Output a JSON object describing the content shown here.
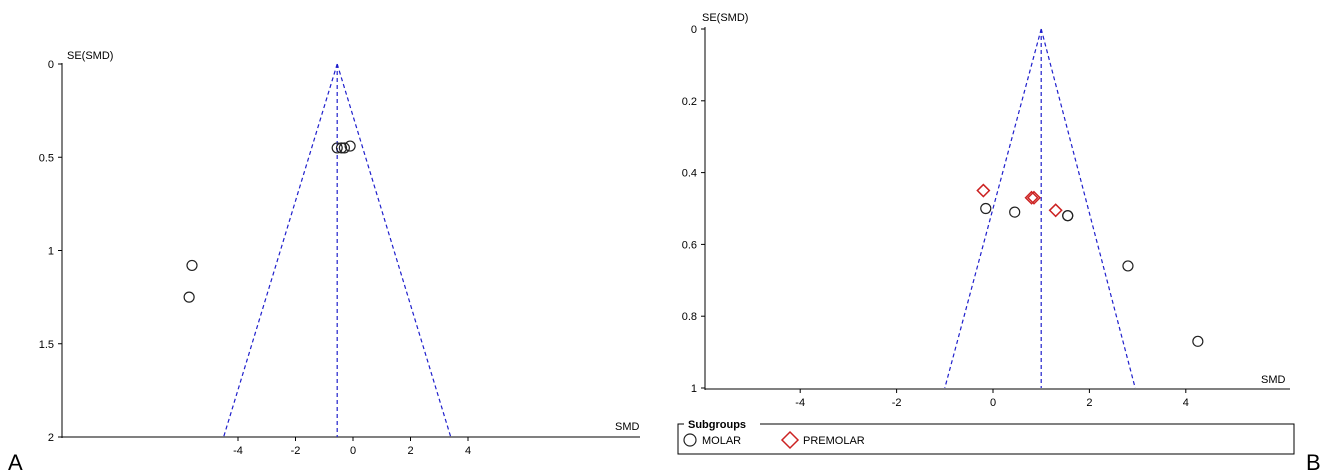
{
  "panels": [
    {
      "panel_label": "A",
      "y_axis_label": "SE(SMD)",
      "x_axis_label": "SMD",
      "legend": null
    },
    {
      "panel_label": "B",
      "y_axis_label": "SE(SMD)",
      "x_axis_label": "SMD",
      "legend": {
        "title": "Subgroups",
        "items": [
          {
            "label": "MOLAR",
            "marker": "circle-icon",
            "color": "#222222"
          },
          {
            "label": "PREMOLAR",
            "marker": "diamond-icon",
            "color": "#cc2222"
          }
        ]
      }
    }
  ],
  "chart_data": [
    {
      "type": "scatter",
      "subtype": "funnel plot",
      "panel_label": "A",
      "xlabel": "SMD",
      "ylabel": "SE(SMD)",
      "y_inverted": true,
      "xlim": [
        -6.0,
        5.5
      ],
      "ylim": [
        0,
        2
      ],
      "x_ticks": [
        -4,
        -2,
        0,
        2,
        4
      ],
      "y_ticks": [
        0,
        0.5,
        1,
        1.5,
        2
      ],
      "summary_smd": -0.55,
      "funnel_ci_at_max_se": [
        -4.5,
        3.4
      ],
      "funnel_color": "#1f1fcc",
      "series": [
        {
          "marker": "circle",
          "color": "#222222",
          "points": [
            {
              "x": -0.55,
              "y": 0.45
            },
            {
              "x": -0.4,
              "y": 0.45
            },
            {
              "x": -0.3,
              "y": 0.45
            },
            {
              "x": -0.1,
              "y": 0.44
            },
            {
              "x": -5.7,
              "y": 1.25
            },
            {
              "x": -5.6,
              "y": 1.08
            }
          ]
        }
      ]
    },
    {
      "type": "scatter",
      "subtype": "funnel plot",
      "panel_label": "B",
      "xlabel": "SMD",
      "ylabel": "SE(SMD)",
      "y_inverted": true,
      "xlim": [
        -6.0,
        6.5
      ],
      "ylim": [
        0,
        1
      ],
      "x_ticks": [
        -4,
        -2,
        0,
        2,
        4
      ],
      "y_ticks": [
        0,
        0.2,
        0.4,
        0.6,
        0.8,
        1
      ],
      "summary_smd": 1.0,
      "funnel_ci_at_max_se": [
        -1.0,
        2.95
      ],
      "funnel_color": "#1f1fcc",
      "series": [
        {
          "name": "MOLAR",
          "marker": "circle",
          "color": "#222222",
          "points": [
            {
              "x": -0.15,
              "y": 0.5
            },
            {
              "x": 0.45,
              "y": 0.51
            },
            {
              "x": 1.55,
              "y": 0.52
            },
            {
              "x": 1.55,
              "y": 0.52
            },
            {
              "x": 2.8,
              "y": 0.66
            },
            {
              "x": 4.25,
              "y": 0.87
            }
          ]
        },
        {
          "name": "PREMOLAR",
          "marker": "diamond",
          "color": "#cc2222",
          "points": [
            {
              "x": -0.2,
              "y": 0.45
            },
            {
              "x": 0.8,
              "y": 0.47
            },
            {
              "x": 0.85,
              "y": 0.47
            },
            {
              "x": 1.3,
              "y": 0.505
            }
          ]
        }
      ]
    }
  ]
}
